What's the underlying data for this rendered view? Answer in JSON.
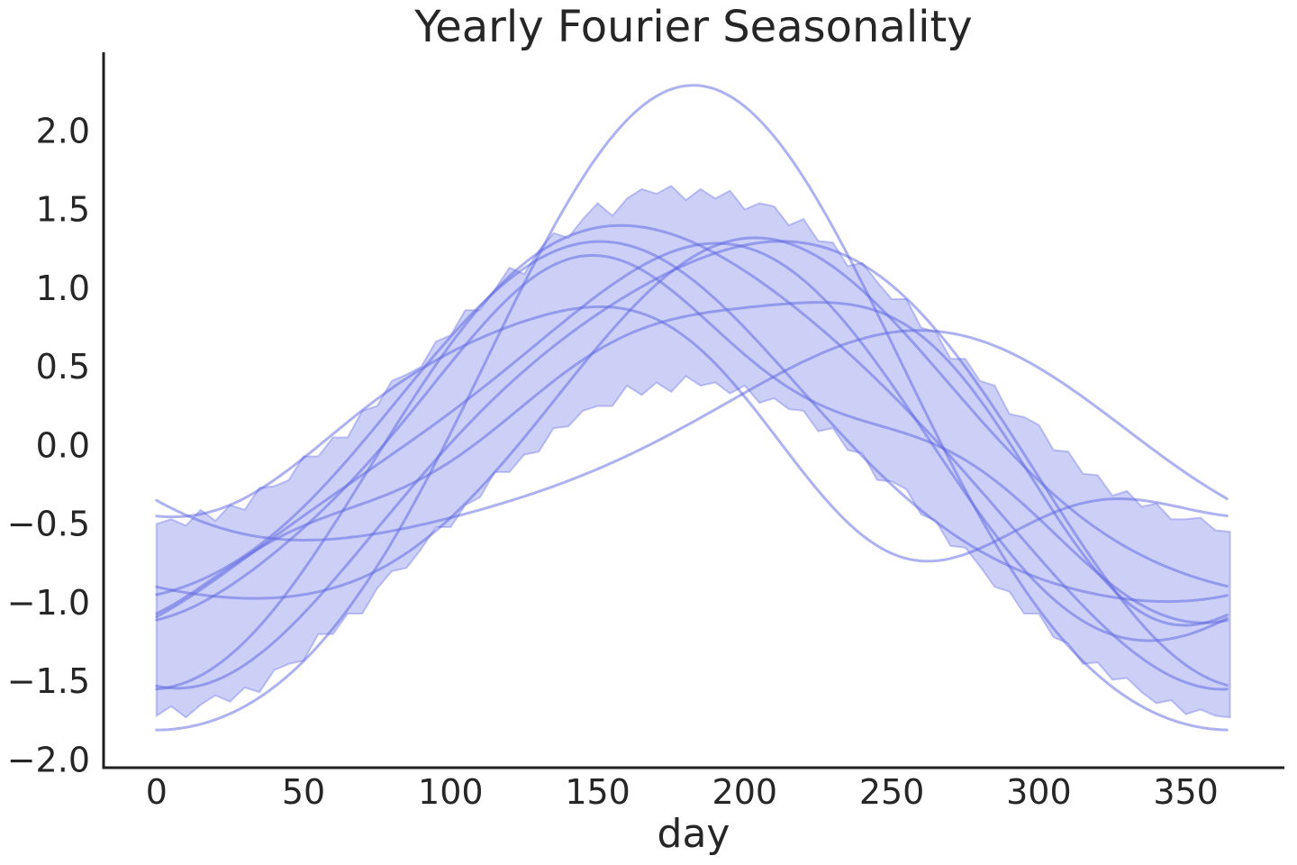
{
  "title": "Yearly Fourier Seasonality",
  "xlabel": "day",
  "chart_data": {
    "type": "line",
    "title": "Yearly Fourier Seasonality",
    "xlabel": "day",
    "ylabel": "",
    "grid": false,
    "legend": "none",
    "xlim": [
      -18,
      383.5
    ],
    "ylim": [
      -2.05,
      2.5
    ],
    "x_ticks": [
      0,
      50,
      100,
      150,
      200,
      250,
      300,
      350
    ],
    "x_tick_labels": [
      "0",
      "50",
      "100",
      "150",
      "200",
      "250",
      "300",
      "350"
    ],
    "y_ticks": [
      -2.0,
      -1.5,
      -1.0,
      -0.5,
      0.0,
      0.5,
      1.0,
      1.5,
      2.0
    ],
    "y_tick_labels": [
      "−2.0",
      "−1.5",
      "−1.0",
      "−0.5",
      "0.0",
      "0.5",
      "1.0",
      "1.5",
      "2.0"
    ],
    "period_days": 365,
    "colors": {
      "base": "#5b63e0",
      "band_fill_alpha": 0.3,
      "band_edge_alpha": 0.35,
      "line_alpha": 0.5,
      "spine": "#1f1f1f",
      "text": "#262626",
      "background": "#ffffff"
    },
    "band": {
      "name": "posterior-uncertainty-band",
      "t_start": 0,
      "t_step": 5,
      "upper": [
        -0.5,
        -0.47,
        -0.51,
        -0.41,
        -0.48,
        -0.38,
        -0.41,
        -0.27,
        -0.26,
        -0.22,
        -0.07,
        -0.07,
        0.05,
        0.05,
        0.22,
        0.25,
        0.41,
        0.45,
        0.5,
        0.66,
        0.7,
        0.86,
        0.86,
        0.99,
        1.13,
        1.09,
        1.24,
        1.35,
        1.32,
        1.44,
        1.54,
        1.46,
        1.57,
        1.63,
        1.6,
        1.65,
        1.56,
        1.63,
        1.57,
        1.62,
        1.5,
        1.54,
        1.52,
        1.4,
        1.44,
        1.3,
        1.29,
        1.14,
        1.16,
        1.04,
        0.93,
        0.93,
        0.75,
        0.72,
        0.55,
        0.55,
        0.41,
        0.38,
        0.2,
        0.18,
        0.13,
        -0.03,
        -0.04,
        -0.18,
        -0.19,
        -0.32,
        -0.29,
        -0.39,
        -0.37,
        -0.47,
        -0.47,
        -0.46,
        -0.54,
        -0.55
      ],
      "lower": [
        -1.72,
        -1.66,
        -1.73,
        -1.65,
        -1.59,
        -1.63,
        -1.54,
        -1.57,
        -1.43,
        -1.39,
        -1.37,
        -1.2,
        -1.2,
        -1.07,
        -1.07,
        -0.91,
        -0.8,
        -0.78,
        -0.66,
        -0.52,
        -0.52,
        -0.38,
        -0.33,
        -0.17,
        -0.17,
        -0.06,
        -0.04,
        0.11,
        0.12,
        0.22,
        0.25,
        0.25,
        0.38,
        0.32,
        0.4,
        0.34,
        0.44,
        0.38,
        0.4,
        0.33,
        0.38,
        0.27,
        0.3,
        0.23,
        0.22,
        0.09,
        0.11,
        -0.03,
        -0.05,
        -0.22,
        -0.23,
        -0.28,
        -0.44,
        -0.48,
        -0.64,
        -0.65,
        -0.77,
        -0.9,
        -0.93,
        -1.07,
        -1.07,
        -1.22,
        -1.26,
        -1.39,
        -1.38,
        -1.49,
        -1.48,
        -1.57,
        -1.64,
        -1.62,
        -1.71,
        -1.68,
        -1.72,
        -1.73
      ]
    },
    "n_samples": 10,
    "coeff_order": [
      "cos1",
      "sin1",
      "cos2",
      "sin2",
      "cos3",
      "sin3"
    ],
    "fourier_samples": [
      {
        "name": "sample-1",
        "coeffs": [
          -2.05,
          0.0,
          0.24,
          0.0,
          0.0,
          0.0
        ]
      },
      {
        "name": "sample-2",
        "coeffs": [
          -1.05,
          -0.45,
          0.15,
          0.1,
          0.0,
          0.0
        ]
      },
      {
        "name": "sample-3",
        "coeffs": [
          -1.0,
          0.55,
          0.05,
          -0.15,
          0.0,
          0.0
        ]
      },
      {
        "name": "sample-4",
        "coeffs": [
          -0.95,
          -0.2,
          -0.12,
          0.18,
          0.0,
          0.12
        ]
      },
      {
        "name": "sample-5",
        "coeffs": [
          -1.18,
          0.18,
          0.09,
          0.2,
          0.0,
          0.0
        ]
      },
      {
        "name": "sample-6",
        "coeffs": [
          -0.99,
          0.3,
          -0.12,
          -0.18,
          0.0,
          0.1
        ]
      },
      {
        "name": "sample-7",
        "coeffs": [
          -1.35,
          -0.35,
          -0.18,
          0.05,
          0.0,
          0.0
        ]
      },
      {
        "name": "sample-8",
        "coeffs": [
          -1.42,
          0.28,
          -0.13,
          -0.1,
          0.0,
          0.0
        ]
      },
      {
        "name": "sample-9",
        "coeffs": [
          -0.25,
          -0.6,
          -0.1,
          0.0,
          0.0,
          0.0
        ]
      },
      {
        "name": "sample-10",
        "coeffs": [
          -0.45,
          0.55,
          0.1,
          -0.25,
          -0.1,
          -0.05
        ]
      }
    ]
  }
}
